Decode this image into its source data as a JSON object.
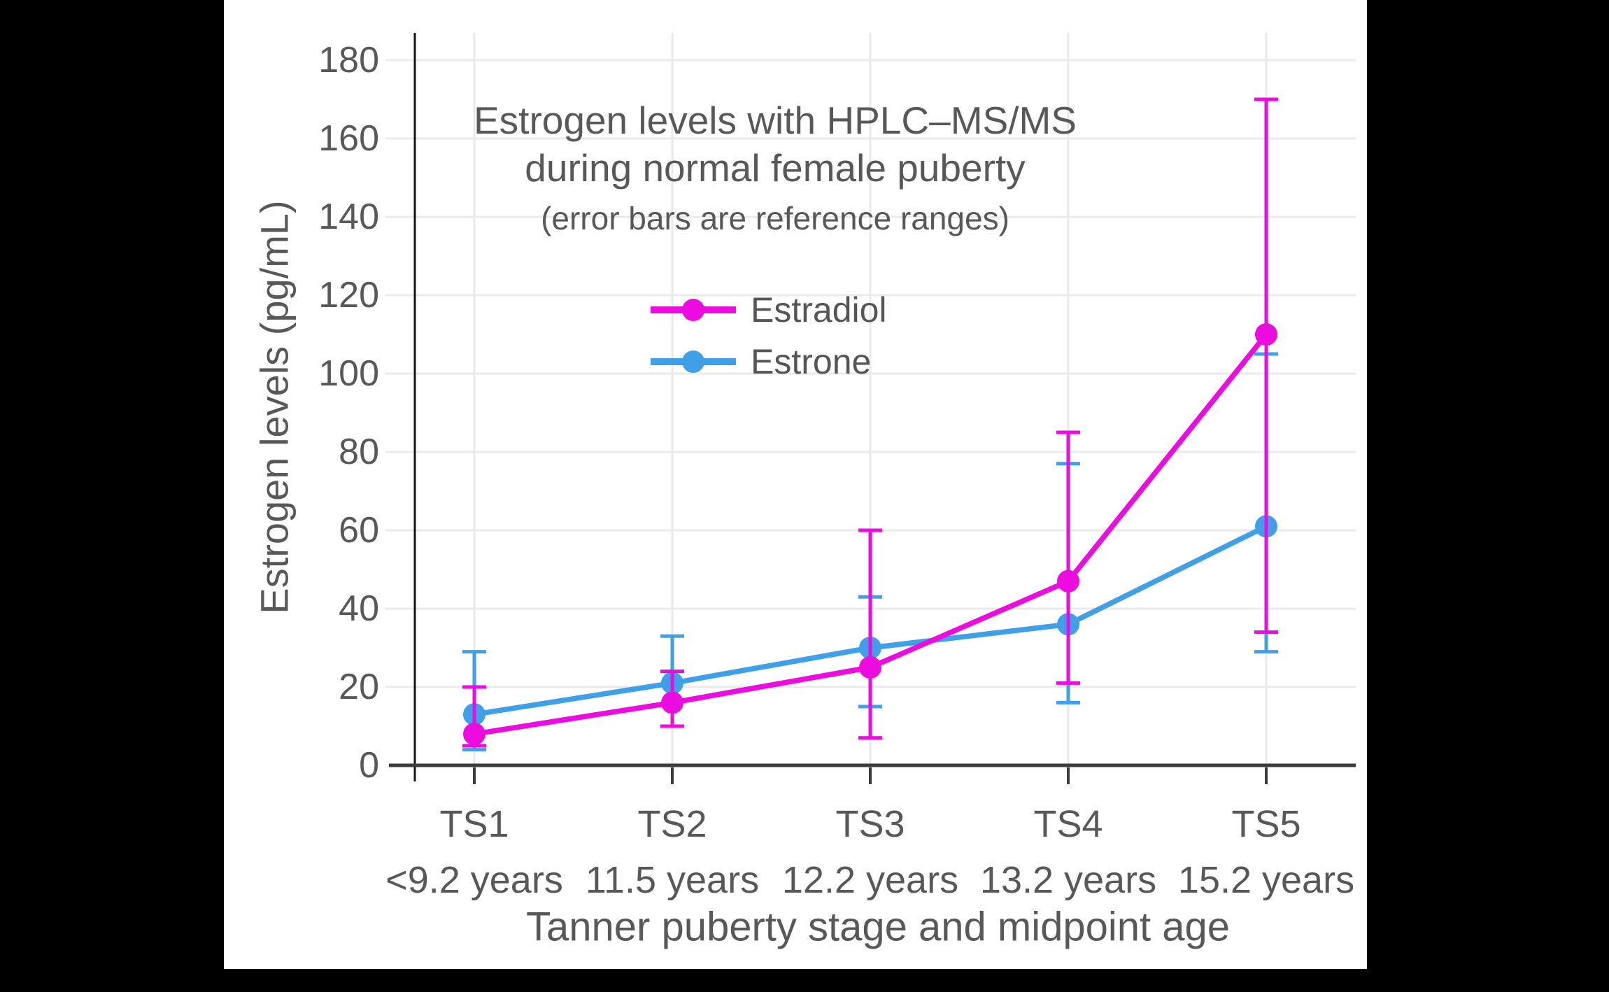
{
  "canvas": {
    "background": "#000000",
    "panel": "#ffffff"
  },
  "chart_data": {
    "type": "line",
    "title_line1": "Estrogen levels with HPLC–MS/MS",
    "title_line2": "during normal female puberty",
    "subtitle": "(error bars are reference ranges)",
    "xlabel": "Tanner puberty stage and midpoint age",
    "ylabel": "Estrogen levels (pg/mL)",
    "categories": [
      "TS1",
      "TS2",
      "TS3",
      "TS4",
      "TS5"
    ],
    "category_ages": [
      "<9.2 years",
      "11.5 years",
      "12.2 years",
      "13.2 years",
      "15.2 years"
    ],
    "y_ticks": [
      0,
      20,
      40,
      60,
      80,
      100,
      120,
      140,
      160,
      180
    ],
    "ylim": [
      0,
      187
    ],
    "grid": true,
    "units": "pg/mL",
    "error_bar_meaning": "reference ranges",
    "legend": {
      "position": "inside-top-center",
      "entries": [
        "Estradiol",
        "Estrone"
      ]
    },
    "series": [
      {
        "name": "Estrone",
        "color": "#3FA0E8",
        "values": [
          13,
          21,
          30,
          36,
          61
        ],
        "range_low": [
          4,
          10,
          15,
          16,
          29
        ],
        "range_high": [
          29,
          33,
          43,
          77,
          105
        ]
      },
      {
        "name": "Estradiol",
        "color": "#EC0CE0",
        "values": [
          8,
          16,
          25,
          47,
          110
        ],
        "range_low": [
          5,
          10,
          7,
          21,
          34
        ],
        "range_high": [
          20,
          24,
          60,
          85,
          170
        ]
      }
    ],
    "style": {
      "text_color": "#585858",
      "grid_color": "#EAEAEA",
      "axis_color": "#3B3B3B",
      "spine_color": "#141414"
    }
  }
}
